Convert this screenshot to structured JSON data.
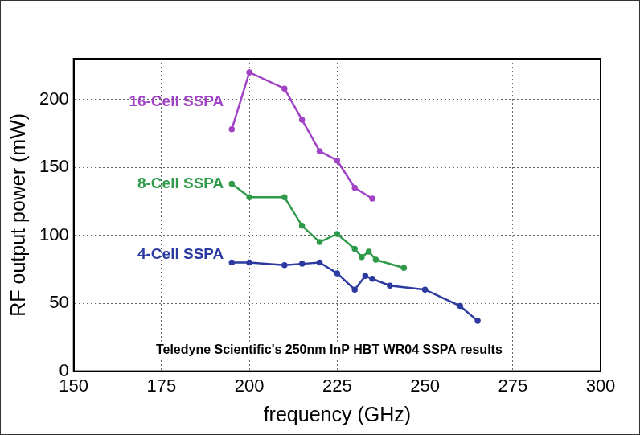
{
  "chart_data": {
    "type": "line",
    "x_label": "frequency (GHz)",
    "y_label": "RF output power (mW)",
    "annotation": "Teledyne Scientific's 250nm InP HBT WR04 SSPA results",
    "xlim": [
      150,
      300
    ],
    "xticks": [
      150,
      175,
      200,
      225,
      250,
      275,
      300
    ],
    "ylim": [
      0,
      230
    ],
    "yticks": [
      0,
      50,
      100,
      150,
      200
    ],
    "grid": true,
    "series": [
      {
        "name": "16-Cell SSPA",
        "color": "#a043c4",
        "marker": "circle",
        "x": [
          195,
          200,
          210,
          215,
          220,
          225,
          230,
          235
        ],
        "values": [
          178,
          220,
          208,
          185,
          162,
          155,
          135,
          127
        ]
      },
      {
        "name": "8-Cell SSPA",
        "color": "#2e9a4a",
        "marker": "circle",
        "x": [
          195,
          200,
          210,
          215,
          220,
          225,
          230,
          232,
          234,
          236,
          244
        ],
        "values": [
          138,
          128,
          128,
          107,
          95,
          101,
          90,
          84,
          88,
          82,
          76
        ]
      },
      {
        "name": "4-Cell SSPA",
        "color": "#2b3aa0",
        "marker": "circle",
        "x": [
          195,
          200,
          210,
          215,
          220,
          225,
          230,
          233,
          235,
          240,
          250,
          260,
          265
        ],
        "values": [
          80,
          80,
          78,
          79,
          80,
          72,
          60,
          70,
          68,
          63,
          60,
          48,
          37
        ]
      }
    ]
  }
}
